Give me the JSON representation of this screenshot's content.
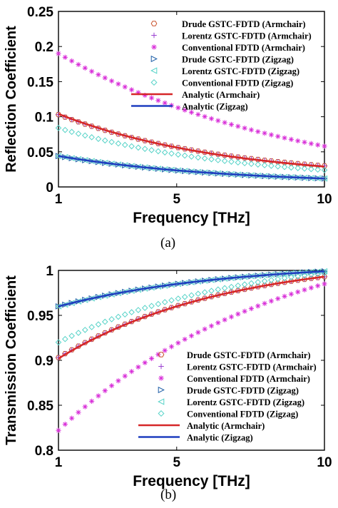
{
  "colors": {
    "red": "#d62728",
    "blue": "#1f3fbf",
    "magenta": "#d82dd8",
    "cyan": "#57d3c8",
    "navy": "#1f5fa8",
    "orange": "#c9512a"
  },
  "chart_data": [
    {
      "type": "line",
      "caption": "(a)",
      "xlabel": "Frequency [THz]",
      "ylabel": "Reflection Coefficient",
      "xscale": "linear",
      "xlim": [
        1,
        10
      ],
      "ylim": [
        0,
        0.25
      ],
      "xticks": [
        "1",
        "5",
        "10"
      ],
      "yticks": [
        "0",
        "0.05",
        "0.1",
        "0.15",
        "0.2",
        "0.25"
      ],
      "legend_position": "top-right",
      "grid": false,
      "series": [
        {
          "name": "Drude GSTC-FDTD (Armchair)",
          "marker": "hexagon",
          "color": "#c9512a",
          "x_start": 1,
          "x_end": 10,
          "y_start": 0.103,
          "y_end": 0.03,
          "shape": 1.6
        },
        {
          "name": "Lorentz GSTC-FDTD (Armchair)",
          "marker": "plus",
          "color": "#9a3fd0",
          "x_start": 1,
          "x_end": 10,
          "y_start": 0.103,
          "y_end": 0.03,
          "shape": 1.6
        },
        {
          "name": "Conventional FDTD (Armchair)",
          "marker": "asterisk",
          "color": "#d82dd8",
          "x_start": 1,
          "x_end": 10,
          "y_start": 0.19,
          "y_end": 0.058,
          "shape": 1.1
        },
        {
          "name": "Drude GSTC-FDTD (Zigzag)",
          "marker": "triangle-right",
          "color": "#1f5fa8",
          "x_start": 1,
          "x_end": 10,
          "y_start": 0.044,
          "y_end": 0.012,
          "shape": 1.6
        },
        {
          "name": "Lorentz GSTC-FDTD (Zigzag)",
          "marker": "triangle-left",
          "color": "#57d3c8",
          "x_start": 1,
          "x_end": 10,
          "y_start": 0.044,
          "y_end": 0.012,
          "shape": 1.6
        },
        {
          "name": "Conventional FDTD (Zigzag)",
          "marker": "diamond",
          "color": "#57d3c8",
          "x_start": 1,
          "x_end": 10,
          "y_start": 0.084,
          "y_end": 0.024,
          "shape": 1.5
        },
        {
          "name": "Analytic (Armchair)",
          "marker": "line",
          "color": "#d62728",
          "x_start": 1,
          "x_end": 10,
          "y_start": 0.104,
          "y_end": 0.029,
          "shape": 1.6
        },
        {
          "name": "Analytic (Zigzag)",
          "marker": "line",
          "color": "#1f3fbf",
          "x_start": 1,
          "x_end": 10,
          "y_start": 0.044,
          "y_end": 0.012,
          "shape": 1.6
        }
      ]
    },
    {
      "type": "line",
      "caption": "(b)",
      "xlabel": "Frequency [THz]",
      "ylabel": "Transmission Coefficient",
      "xscale": "linear",
      "xlim": [
        1,
        10
      ],
      "ylim": [
        0.8,
        1
      ],
      "xticks": [
        "1",
        "5",
        "10"
      ],
      "yticks": [
        "0.8",
        "0.85",
        "0.9",
        "0.95",
        "1"
      ],
      "legend_position": "bottom-right",
      "grid": false,
      "series": [
        {
          "name": "Drude GSTC-FDTD (Armchair)",
          "marker": "hexagon",
          "color": "#c9512a",
          "x_start": 1,
          "x_end": 10,
          "y_start": 0.903,
          "y_end": 0.993,
          "shape": 1.6
        },
        {
          "name": "Lorentz GSTC-FDTD (Armchair)",
          "marker": "plus",
          "color": "#9a3fd0",
          "x_start": 1,
          "x_end": 10,
          "y_start": 0.903,
          "y_end": 0.993,
          "shape": 1.6
        },
        {
          "name": "Conventional FDTD (Armchair)",
          "marker": "asterisk",
          "color": "#d82dd8",
          "x_start": 1,
          "x_end": 10,
          "y_start": 0.822,
          "y_end": 0.985,
          "shape": 1.2
        },
        {
          "name": "Drude GSTC-FDTD (Zigzag)",
          "marker": "triangle-right",
          "color": "#1f5fa8",
          "x_start": 1,
          "x_end": 10,
          "y_start": 0.96,
          "y_end": 0.999,
          "shape": 1.6
        },
        {
          "name": "Lorentz GSTC-FDTD (Zigzag)",
          "marker": "triangle-left",
          "color": "#57d3c8",
          "x_start": 1,
          "x_end": 10,
          "y_start": 0.96,
          "y_end": 0.999,
          "shape": 1.6
        },
        {
          "name": "Conventional FDTD (Zigzag)",
          "marker": "diamond",
          "color": "#57d3c8",
          "x_start": 1,
          "x_end": 10,
          "y_start": 0.92,
          "y_end": 0.997,
          "shape": 1.5
        },
        {
          "name": "Analytic (Armchair)",
          "marker": "line",
          "color": "#d62728",
          "x_start": 1,
          "x_end": 10,
          "y_start": 0.902,
          "y_end": 0.993,
          "shape": 1.6
        },
        {
          "name": "Analytic (Zigzag)",
          "marker": "line",
          "color": "#1f3fbf",
          "x_start": 1,
          "x_end": 10,
          "y_start": 0.96,
          "y_end": 0.999,
          "shape": 1.6
        }
      ]
    }
  ]
}
